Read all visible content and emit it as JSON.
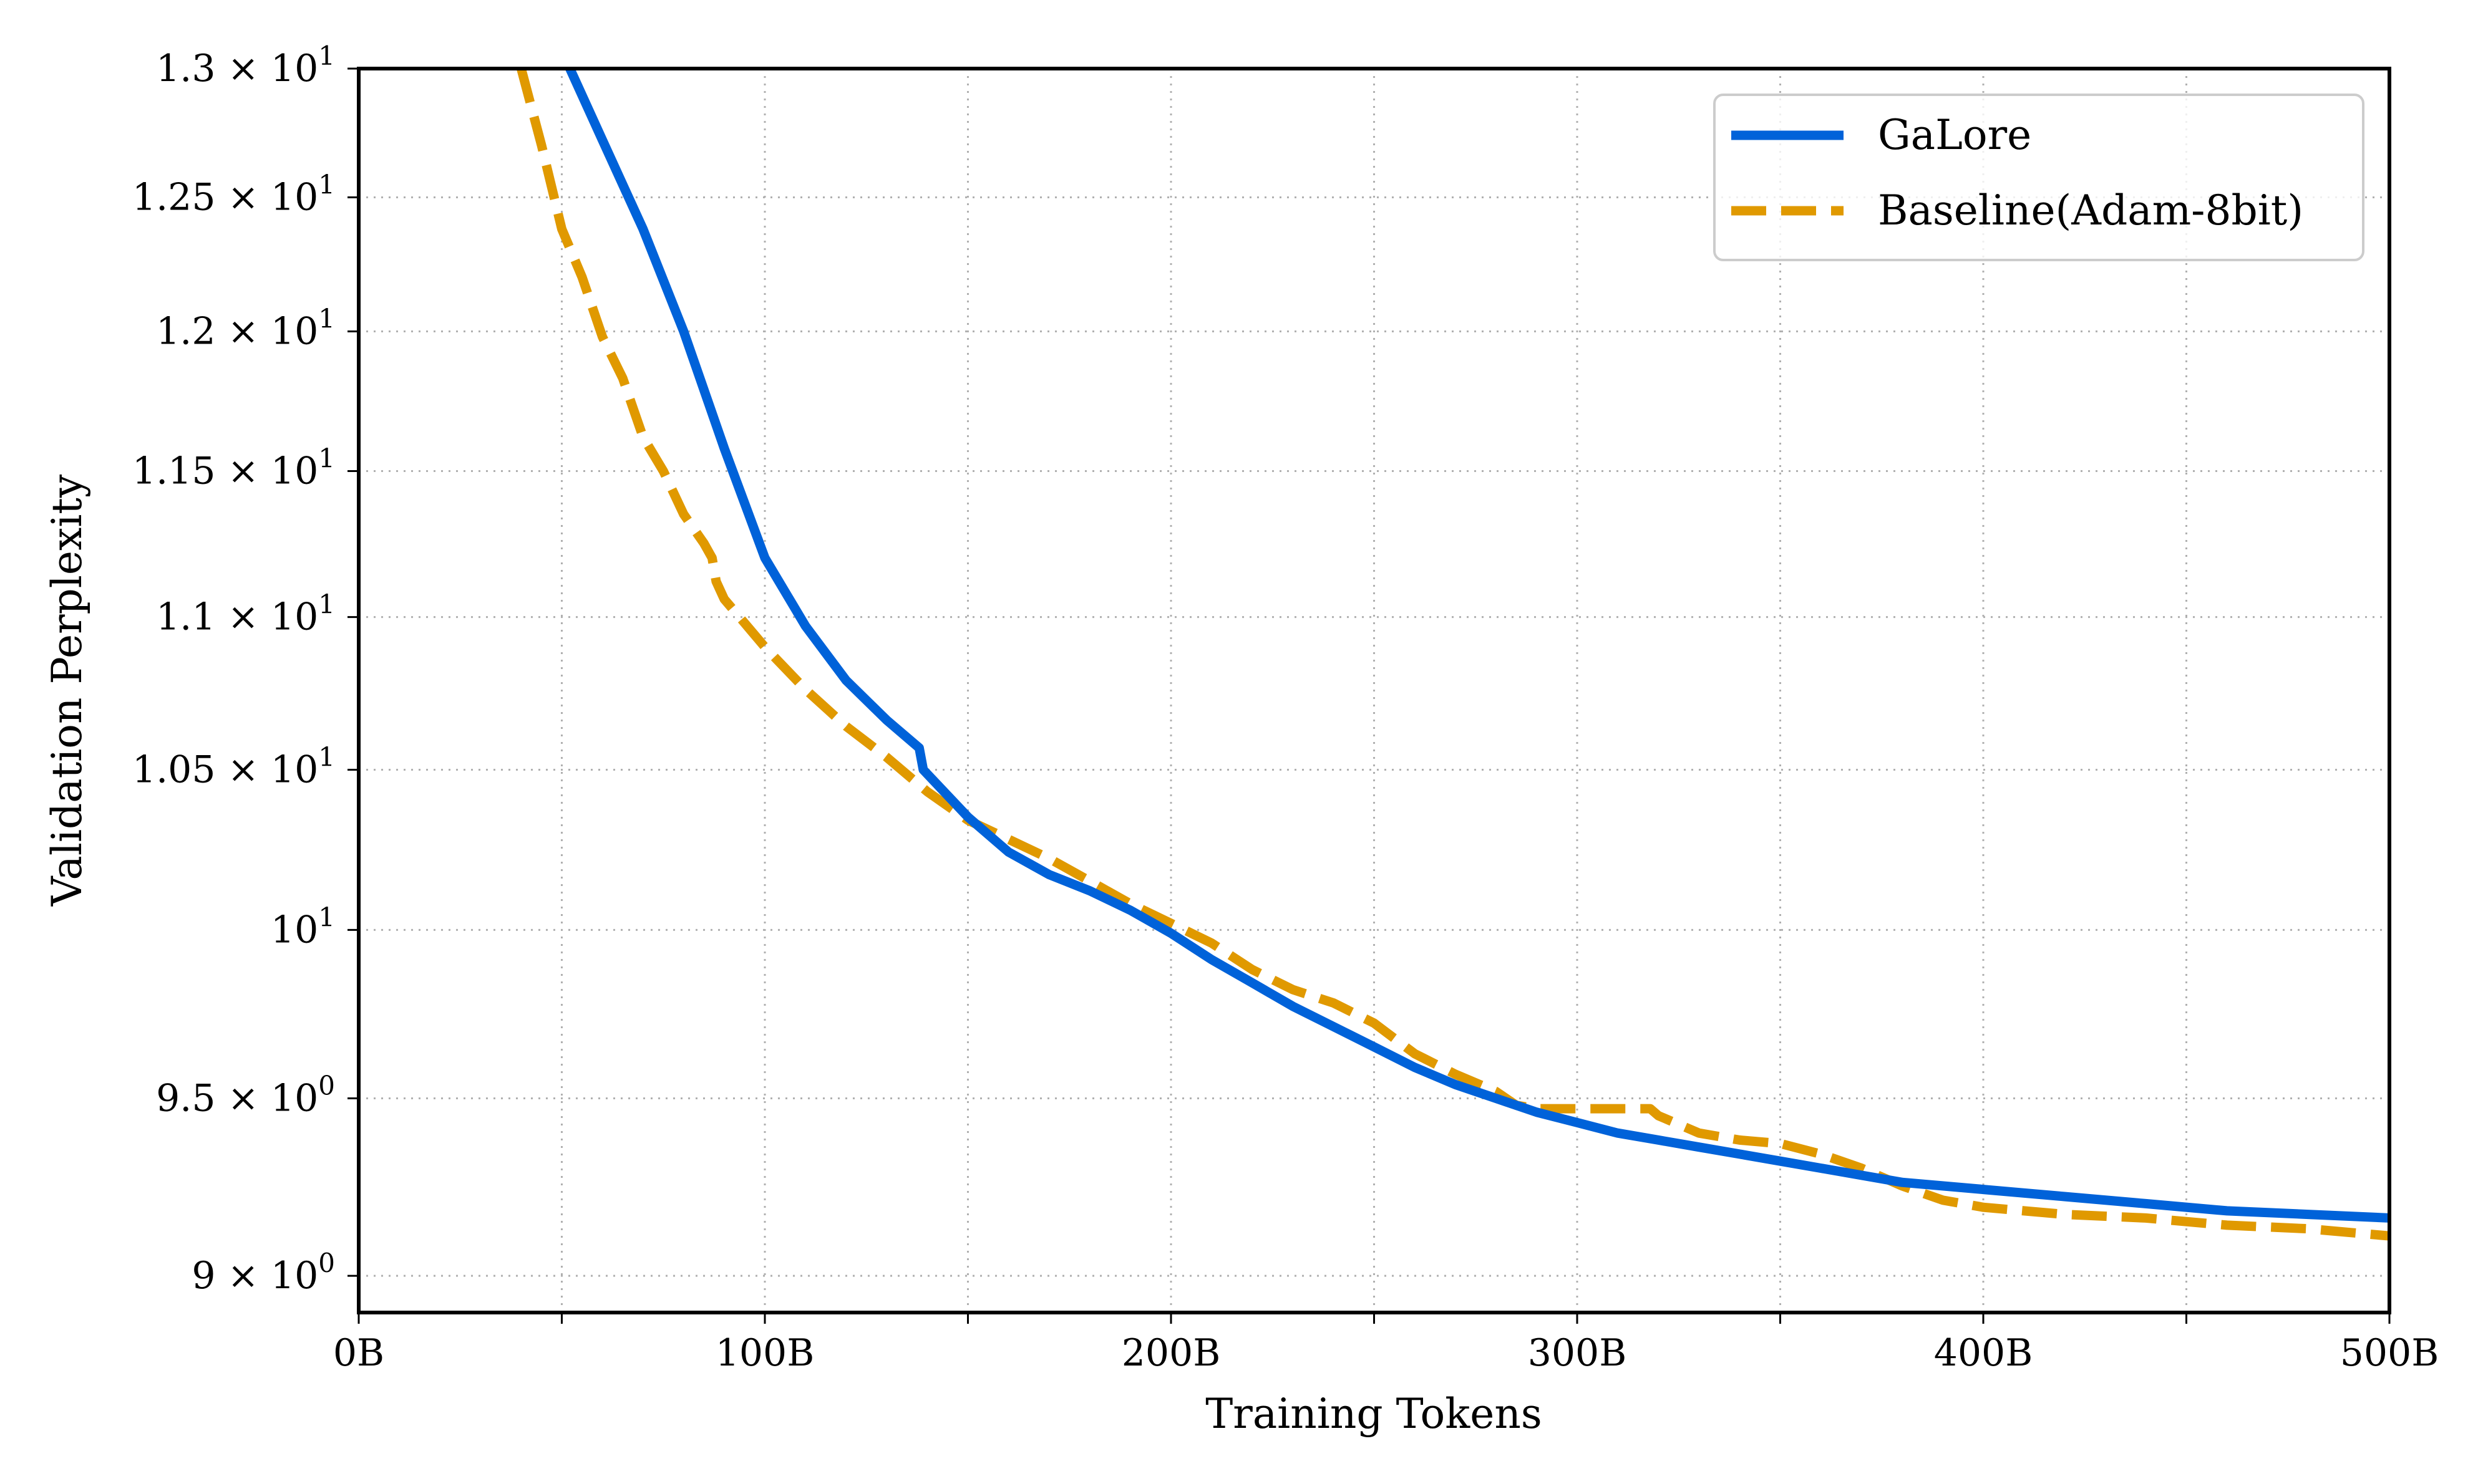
{
  "chart_data": {
    "type": "line",
    "title": "",
    "xlabel": "Training Tokens",
    "ylabel": "Validation Perplexity",
    "xlim": [
      0,
      500
    ],
    "ylim": [
      8.9,
      13.0
    ],
    "yscale": "log",
    "grid": true,
    "legend_position": "top-right",
    "x_ticks": [
      {
        "value": 0,
        "label": "0B"
      },
      {
        "value": 50,
        "label": ""
      },
      {
        "value": 100,
        "label": "100B"
      },
      {
        "value": 150,
        "label": ""
      },
      {
        "value": 200,
        "label": "200B"
      },
      {
        "value": 250,
        "label": ""
      },
      {
        "value": 300,
        "label": "300B"
      },
      {
        "value": 350,
        "label": ""
      },
      {
        "value": 400,
        "label": "400B"
      },
      {
        "value": 450,
        "label": ""
      },
      {
        "value": 500,
        "label": "500B"
      }
    ],
    "y_ticks": [
      {
        "value": 9.0,
        "mantissa": "9 × 10",
        "exp": "0"
      },
      {
        "value": 9.5,
        "mantissa": "9.5 × 10",
        "exp": "0"
      },
      {
        "value": 10.0,
        "mantissa": "10",
        "exp": "1"
      },
      {
        "value": 10.5,
        "mantissa": "1.05 × 10",
        "exp": "1"
      },
      {
        "value": 11.0,
        "mantissa": "1.1 × 10",
        "exp": "1"
      },
      {
        "value": 11.5,
        "mantissa": "1.15 × 10",
        "exp": "1"
      },
      {
        "value": 12.0,
        "mantissa": "1.2 × 10",
        "exp": "1"
      },
      {
        "value": 12.5,
        "mantissa": "1.25 × 10",
        "exp": "1"
      },
      {
        "value": 13.0,
        "mantissa": "1.3 × 10",
        "exp": "1"
      }
    ],
    "series": [
      {
        "name": "GaLore",
        "color": "#0062d9",
        "style": "solid",
        "points": [
          [
            52,
            13.0
          ],
          [
            60,
            12.72
          ],
          [
            70,
            12.38
          ],
          [
            80,
            12.0
          ],
          [
            90,
            11.58
          ],
          [
            100,
            11.2
          ],
          [
            110,
            10.97
          ],
          [
            120,
            10.79
          ],
          [
            130,
            10.66
          ],
          [
            138,
            10.57
          ],
          [
            139,
            10.5
          ],
          [
            150,
            10.35
          ],
          [
            160,
            10.24
          ],
          [
            170,
            10.17
          ],
          [
            180,
            10.12
          ],
          [
            190,
            10.06
          ],
          [
            200,
            9.99
          ],
          [
            210,
            9.91
          ],
          [
            220,
            9.84
          ],
          [
            230,
            9.77
          ],
          [
            240,
            9.71
          ],
          [
            250,
            9.65
          ],
          [
            260,
            9.59
          ],
          [
            270,
            9.54
          ],
          [
            280,
            9.5
          ],
          [
            290,
            9.46
          ],
          [
            300,
            9.43
          ],
          [
            310,
            9.4
          ],
          [
            320,
            9.38
          ],
          [
            330,
            9.36
          ],
          [
            340,
            9.34
          ],
          [
            350,
            9.32
          ],
          [
            360,
            9.3
          ],
          [
            370,
            9.28
          ],
          [
            380,
            9.26
          ],
          [
            400,
            9.24
          ],
          [
            420,
            9.22
          ],
          [
            440,
            9.2
          ],
          [
            460,
            9.18
          ],
          [
            480,
            9.17
          ],
          [
            500,
            9.16
          ]
        ]
      },
      {
        "name": "Baseline(Adam-8bit)",
        "color": "#e09900",
        "style": "dashed",
        "points": [
          [
            40,
            13.0
          ],
          [
            45,
            12.7
          ],
          [
            50,
            12.38
          ],
          [
            55,
            12.2
          ],
          [
            60,
            11.98
          ],
          [
            65,
            11.83
          ],
          [
            70,
            11.62
          ],
          [
            75,
            11.5
          ],
          [
            80,
            11.35
          ],
          [
            85,
            11.25
          ],
          [
            87,
            11.2
          ],
          [
            88,
            11.12
          ],
          [
            90,
            11.06
          ],
          [
            95,
            10.98
          ],
          [
            100,
            10.9
          ],
          [
            110,
            10.76
          ],
          [
            120,
            10.64
          ],
          [
            130,
            10.54
          ],
          [
            140,
            10.43
          ],
          [
            150,
            10.34
          ],
          [
            160,
            10.28
          ],
          [
            170,
            10.22
          ],
          [
            180,
            10.15
          ],
          [
            190,
            10.08
          ],
          [
            200,
            10.02
          ],
          [
            210,
            9.96
          ],
          [
            220,
            9.88
          ],
          [
            230,
            9.82
          ],
          [
            240,
            9.78
          ],
          [
            250,
            9.72
          ],
          [
            260,
            9.63
          ],
          [
            270,
            9.57
          ],
          [
            280,
            9.52
          ],
          [
            285,
            9.48
          ],
          [
            290,
            9.47
          ],
          [
            300,
            9.47
          ],
          [
            310,
            9.47
          ],
          [
            318,
            9.47
          ],
          [
            320,
            9.45
          ],
          [
            330,
            9.4
          ],
          [
            340,
            9.38
          ],
          [
            350,
            9.37
          ],
          [
            360,
            9.34
          ],
          [
            370,
            9.3
          ],
          [
            380,
            9.25
          ],
          [
            390,
            9.21
          ],
          [
            400,
            9.19
          ],
          [
            420,
            9.17
          ],
          [
            440,
            9.16
          ],
          [
            460,
            9.14
          ],
          [
            480,
            9.13
          ],
          [
            500,
            9.11
          ]
        ]
      }
    ]
  }
}
